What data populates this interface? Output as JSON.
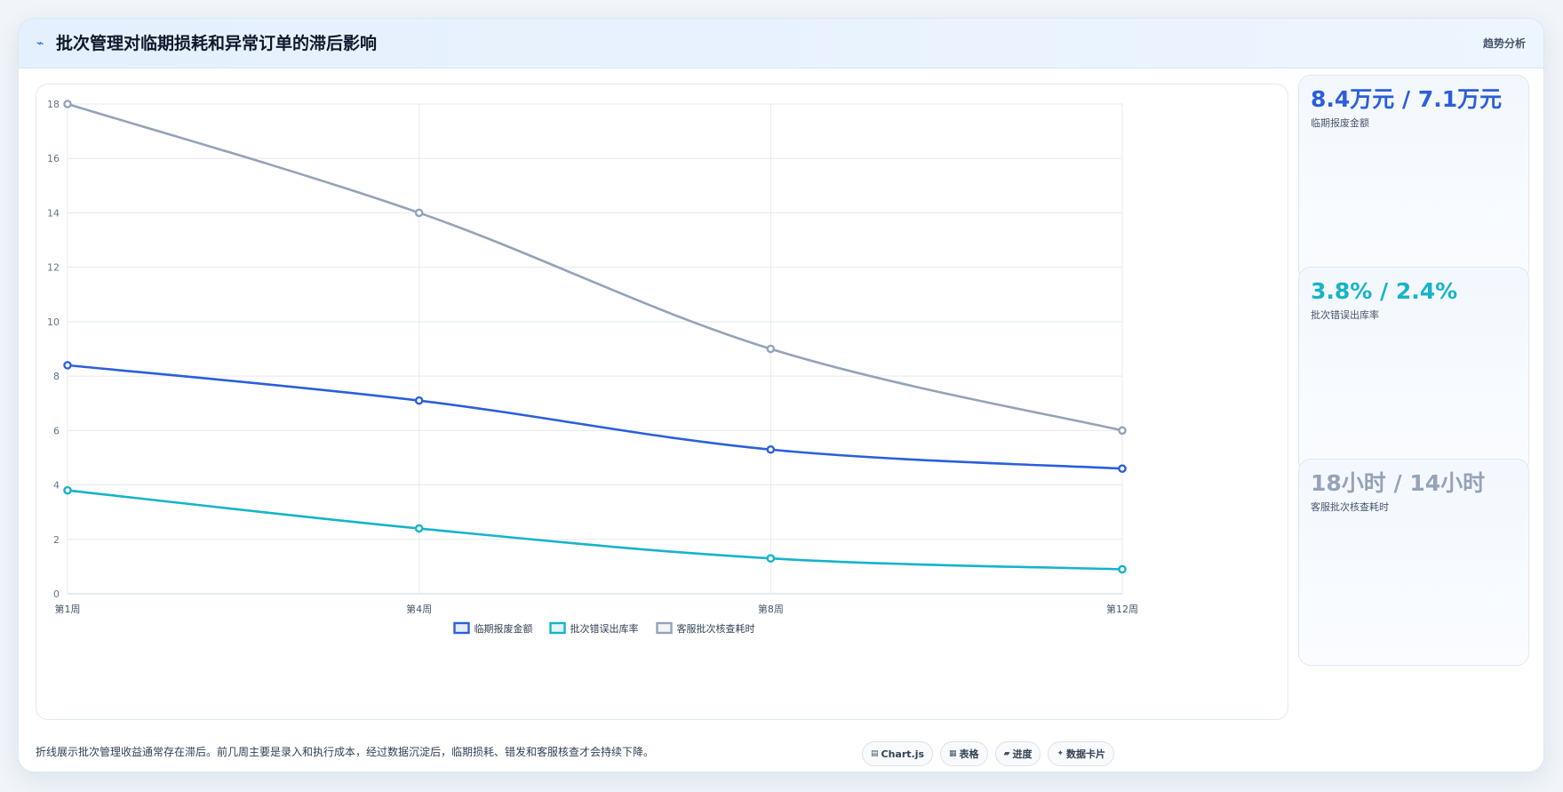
{
  "header": {
    "icon": "trend-line-icon",
    "title": "批次管理对临期损耗和异常订单的滞后影响",
    "tag": "趋势分析"
  },
  "chart_data": {
    "type": "line",
    "categories": [
      "第1周",
      "第4周",
      "第8周",
      "第12周"
    ],
    "series": [
      {
        "name": "临期报废金额",
        "color": "#2b5fd9",
        "values": [
          8.4,
          7.1,
          5.3,
          4.6
        ]
      },
      {
        "name": "批次错误出库率",
        "color": "#17b3c9",
        "values": [
          3.8,
          2.4,
          1.3,
          0.9
        ]
      },
      {
        "name": "客服批次核查耗时",
        "color": "#94a3b8",
        "values": [
          18,
          14,
          9,
          6
        ]
      }
    ],
    "ylim": [
      0,
      18
    ],
    "yticks": [
      0,
      2,
      4,
      6,
      8,
      10,
      12,
      14,
      16,
      18
    ],
    "grid": true,
    "legend": "bottom"
  },
  "kpis": [
    {
      "value": "8.4万元 / 7.1万元",
      "label": "临期报废金额",
      "color": "#2b5fd9"
    },
    {
      "value": "3.8% / 2.4%",
      "label": "批次错误出库率",
      "color": "#17b3c9"
    },
    {
      "value": "18小时 / 14小时",
      "label": "客服批次核查耗时",
      "color": "#94a3b8"
    }
  ],
  "footnote": "折线展示批次管理收益通常存在滞后。前几周主要是录入和执行成本，经过数据沉淀后，临期损耗、错发和客服核查才会持续下降。",
  "tags": [
    {
      "icon": "chart-icon",
      "label": "Chart.js"
    },
    {
      "icon": "table-icon",
      "label": "表格"
    },
    {
      "icon": "progress-icon",
      "label": "进度"
    },
    {
      "icon": "card-icon",
      "label": "数据卡片"
    }
  ]
}
